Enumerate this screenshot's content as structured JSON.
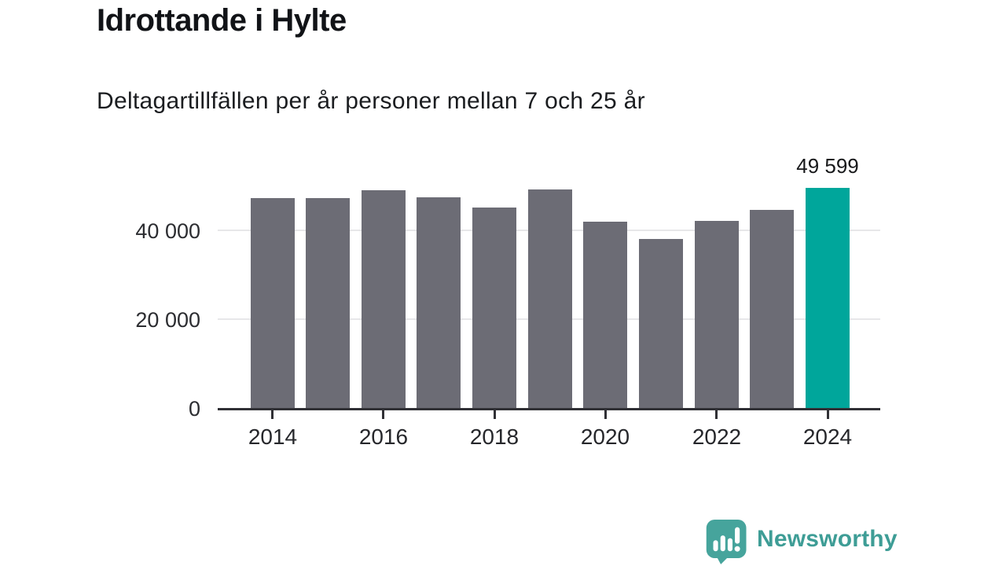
{
  "header": {
    "title": "Idrottande i Hylte",
    "subtitle": "Deltagartillfällen per år personer mellan 7 och 25 år"
  },
  "chart_data": {
    "type": "bar",
    "title": "Idrottande i Hylte",
    "subtitle": "Deltagartillfällen per år personer mellan 7 och 25 år",
    "categories": [
      "2014",
      "2015",
      "2016",
      "2017",
      "2018",
      "2019",
      "2020",
      "2021",
      "2022",
      "2023",
      "2024"
    ],
    "values": [
      47300,
      47200,
      48970,
      47490,
      45080,
      49200,
      41900,
      38000,
      42180,
      44660,
      49599
    ],
    "values_note": "only 2024 is labeled on the chart (49 599); other values estimated from bar heights",
    "highlight_index": 10,
    "highlight_label": "49 599",
    "xtick_labels": [
      "2014",
      "2016",
      "2018",
      "2020",
      "2022",
      "2024"
    ],
    "yticks": [
      {
        "value": 0,
        "label": "0"
      },
      {
        "value": 20000,
        "label": "20 000"
      },
      {
        "value": 40000,
        "label": "40 000"
      }
    ],
    "ylim": [
      0,
      52000
    ],
    "grid": true,
    "legend": "none",
    "bar_color": "#6C6C75",
    "highlight_color": "#00A69B",
    "axis_color": "#303035",
    "grid_color": "#E7E7E9"
  },
  "footer": {
    "brand": "Newsworthy",
    "brand_color": "#3E9D96",
    "logo_icon": "newsworthy-speech-bubble-bar-chart-icon",
    "logo_color": "#46A49C"
  }
}
